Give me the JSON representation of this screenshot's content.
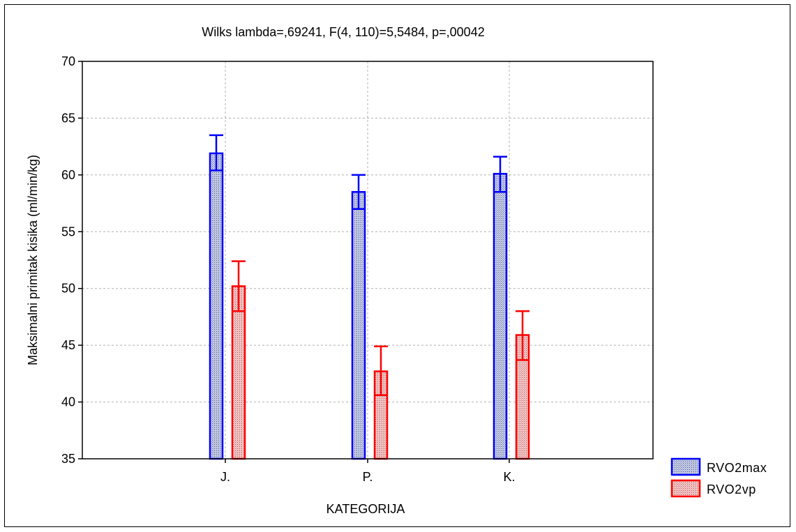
{
  "chart_data": {
    "type": "bar",
    "title": "Wilks lambda=,69241, F(4, 110)=5,5484, p=,00042",
    "xlabel": "KATEGORIJA",
    "ylabel": "Maksimalni primitak kisika (ml/min/kg)",
    "categories": [
      "J.",
      "P.",
      "K."
    ],
    "ylim": [
      35,
      70
    ],
    "yticks": [
      "35",
      "40",
      "45",
      "50",
      "55",
      "60",
      "65",
      "70"
    ],
    "grid": true,
    "legend_position": "bottom-right",
    "series": [
      {
        "name": "RVO2max",
        "color": "#0000ff",
        "fill": "#b8c0d8",
        "values": [
          61.9,
          58.5,
          60.1
        ],
        "err_low": [
          60.4,
          57.0,
          58.5
        ],
        "err_high": [
          63.5,
          60.0,
          61.6
        ]
      },
      {
        "name": "RVO2vp",
        "color": "#ff0000",
        "fill": "#e8b8b8",
        "values": [
          50.2,
          42.7,
          45.9
        ],
        "err_low": [
          48.0,
          40.6,
          43.7
        ],
        "err_high": [
          52.4,
          44.9,
          48.0
        ]
      }
    ]
  }
}
